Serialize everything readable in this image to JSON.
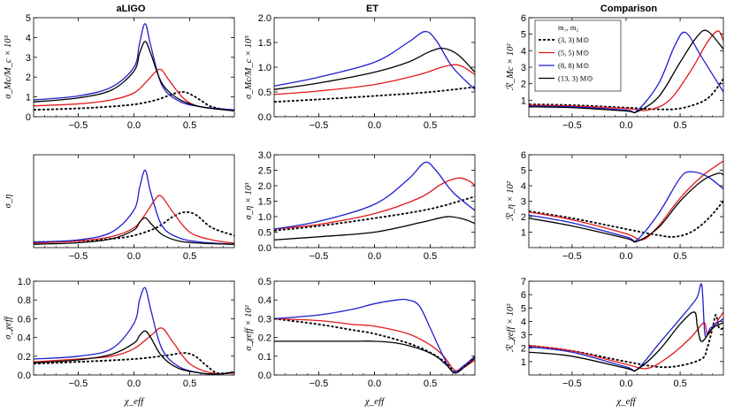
{
  "columns": [
    "aLIGO",
    "ET",
    "Comparison"
  ],
  "x_label": "χ_eff",
  "colors": {
    "m33": "#000000",
    "m55": "#e31a1c",
    "m88": "#1f1fd1",
    "m133": "#000000"
  },
  "legend": {
    "title": "m₁, m₂",
    "entries": [
      "(3, 3) M⊙",
      "(5, 5) M⊙",
      "(8, 8) M⊙",
      "(13, 3) M⊙"
    ]
  },
  "chart_data": [
    {
      "id": "p00",
      "type": "line",
      "ylabel": "σ_Mc/M_c × 10³",
      "xlim": [
        -0.9,
        0.9
      ],
      "ylim": [
        0,
        5
      ],
      "xticks": [
        -0.5,
        0.0,
        0.5
      ],
      "yticks": [
        0,
        1,
        2,
        3,
        4,
        5
      ],
      "series": [
        {
          "key": "m33",
          "x": [
            -0.9,
            -0.6,
            -0.3,
            0.0,
            0.2,
            0.35,
            0.45,
            0.55,
            0.7,
            0.9
          ],
          "y": [
            0.35,
            0.4,
            0.48,
            0.62,
            0.85,
            1.15,
            1.25,
            1.0,
            0.5,
            0.3
          ]
        },
        {
          "key": "m55",
          "x": [
            -0.9,
            -0.5,
            -0.2,
            0.0,
            0.1,
            0.2,
            0.25,
            0.32,
            0.45,
            0.6,
            0.9
          ],
          "y": [
            0.55,
            0.65,
            0.85,
            1.2,
            1.7,
            2.3,
            2.35,
            1.8,
            0.9,
            0.5,
            0.3
          ]
        },
        {
          "key": "m88",
          "x": [
            -0.9,
            -0.5,
            -0.2,
            0.0,
            0.05,
            0.1,
            0.15,
            0.25,
            0.4,
            0.6,
            0.9
          ],
          "y": [
            0.85,
            1.05,
            1.5,
            2.5,
            3.7,
            4.7,
            3.6,
            1.6,
            0.8,
            0.5,
            0.35
          ]
        },
        {
          "key": "m133",
          "x": [
            -0.9,
            -0.5,
            -0.2,
            0.0,
            0.05,
            0.1,
            0.15,
            0.25,
            0.4,
            0.6,
            0.9
          ],
          "y": [
            0.75,
            0.95,
            1.35,
            2.3,
            3.2,
            3.8,
            3.2,
            1.7,
            0.9,
            0.5,
            0.3
          ]
        }
      ]
    },
    {
      "id": "p01",
      "type": "line",
      "ylabel": "σ_Mc/M_c × 10⁵",
      "xlim": [
        -0.9,
        0.9
      ],
      "ylim": [
        0,
        2
      ],
      "xticks": [
        -0.5,
        0.0,
        0.5
      ],
      "yticks": [
        0,
        0.5,
        1.0,
        1.5,
        2.0
      ],
      "series": [
        {
          "key": "m33",
          "x": [
            -0.9,
            -0.5,
            0.0,
            0.5,
            0.9
          ],
          "y": [
            0.3,
            0.35,
            0.42,
            0.5,
            0.6
          ]
        },
        {
          "key": "m55",
          "x": [
            -0.9,
            -0.5,
            0.0,
            0.4,
            0.6,
            0.72,
            0.8,
            0.9
          ],
          "y": [
            0.45,
            0.52,
            0.65,
            0.85,
            1.0,
            1.05,
            1.0,
            0.85
          ]
        },
        {
          "key": "m88",
          "x": [
            -0.9,
            -0.5,
            0.0,
            0.3,
            0.45,
            0.55,
            0.7,
            0.9
          ],
          "y": [
            0.62,
            0.8,
            1.1,
            1.5,
            1.72,
            1.55,
            1.0,
            0.55
          ]
        },
        {
          "key": "m133",
          "x": [
            -0.9,
            -0.5,
            0.0,
            0.3,
            0.5,
            0.62,
            0.75,
            0.9
          ],
          "y": [
            0.55,
            0.68,
            0.9,
            1.1,
            1.32,
            1.38,
            1.25,
            0.9
          ]
        }
      ]
    },
    {
      "id": "p02",
      "type": "line",
      "ylabel": "ℛ_Mc × 10²",
      "xlim": [
        -0.9,
        0.9
      ],
      "ylim": [
        0,
        6
      ],
      "xticks": [
        -0.5,
        0.0,
        0.5
      ],
      "yticks": [
        1,
        2,
        3,
        4,
        5,
        6
      ],
      "legend": true,
      "series": [
        {
          "key": "m33",
          "x": [
            -0.9,
            -0.5,
            0.0,
            0.3,
            0.5,
            0.7,
            0.8,
            0.9
          ],
          "y": [
            0.75,
            0.7,
            0.55,
            0.45,
            0.5,
            0.9,
            1.4,
            2.3
          ]
        },
        {
          "key": "m55",
          "x": [
            -0.9,
            -0.5,
            0.0,
            0.2,
            0.4,
            0.6,
            0.75,
            0.85,
            0.9
          ],
          "y": [
            0.7,
            0.65,
            0.5,
            0.4,
            1.0,
            2.8,
            4.5,
            5.2,
            4.6
          ]
        },
        {
          "key": "m88",
          "x": [
            -0.9,
            -0.5,
            0.0,
            0.1,
            0.3,
            0.45,
            0.55,
            0.7,
            0.9
          ],
          "y": [
            0.65,
            0.6,
            0.4,
            0.35,
            2.0,
            4.3,
            5.1,
            3.6,
            1.5
          ]
        },
        {
          "key": "m133",
          "x": [
            -0.9,
            -0.5,
            0.0,
            0.1,
            0.3,
            0.5,
            0.65,
            0.75,
            0.9
          ],
          "y": [
            0.6,
            0.55,
            0.35,
            0.3,
            1.2,
            3.3,
            4.8,
            5.2,
            4.1
          ]
        }
      ]
    },
    {
      "id": "p10",
      "type": "line",
      "ylabel": "σ_η",
      "xlim": [
        -0.9,
        0.9
      ],
      "ylim": [
        0,
        0.42
      ],
      "xticks": [
        -0.5,
        0.0,
        0.5
      ],
      "yticks": [],
      "series": [
        {
          "key": "m33",
          "x": [
            -0.9,
            -0.5,
            -0.2,
            0.0,
            0.2,
            0.35,
            0.45,
            0.55,
            0.7,
            0.9
          ],
          "y": [
            0.025,
            0.03,
            0.04,
            0.055,
            0.09,
            0.14,
            0.16,
            0.15,
            0.09,
            0.055
          ]
        },
        {
          "key": "m55",
          "x": [
            -0.9,
            -0.5,
            -0.2,
            0.0,
            0.1,
            0.2,
            0.25,
            0.35,
            0.5,
            0.7,
            0.9
          ],
          "y": [
            0.02,
            0.03,
            0.05,
            0.09,
            0.15,
            0.225,
            0.23,
            0.16,
            0.07,
            0.035,
            0.02
          ]
        },
        {
          "key": "m88",
          "x": [
            -0.9,
            -0.5,
            -0.2,
            0.0,
            0.05,
            0.1,
            0.15,
            0.25,
            0.4,
            0.6,
            0.9
          ],
          "y": [
            0.025,
            0.035,
            0.07,
            0.17,
            0.27,
            0.35,
            0.25,
            0.1,
            0.045,
            0.025,
            0.015
          ]
        },
        {
          "key": "m133",
          "x": [
            -0.9,
            -0.5,
            -0.2,
            0.0,
            0.05,
            0.1,
            0.15,
            0.25,
            0.4,
            0.6,
            0.9
          ],
          "y": [
            0.015,
            0.022,
            0.04,
            0.08,
            0.115,
            0.135,
            0.11,
            0.06,
            0.03,
            0.02,
            0.015
          ]
        }
      ]
    },
    {
      "id": "p11",
      "type": "line",
      "ylabel": "σ_η × 10³",
      "xlim": [
        -0.9,
        0.9
      ],
      "ylim": [
        0,
        3
      ],
      "xticks": [
        -0.5,
        0.0,
        0.5
      ],
      "yticks": [
        0,
        0.5,
        1.0,
        1.5,
        2.0,
        2.5,
        3.0
      ],
      "series": [
        {
          "key": "m33",
          "x": [
            -0.9,
            -0.5,
            0.0,
            0.5,
            0.9
          ],
          "y": [
            0.55,
            0.7,
            0.95,
            1.25,
            1.65
          ]
        },
        {
          "key": "m55",
          "x": [
            -0.9,
            -0.5,
            0.0,
            0.4,
            0.6,
            0.75,
            0.85,
            0.9
          ],
          "y": [
            0.6,
            0.75,
            1.1,
            1.6,
            2.05,
            2.25,
            2.15,
            2.0
          ]
        },
        {
          "key": "m88",
          "x": [
            -0.9,
            -0.5,
            0.0,
            0.3,
            0.45,
            0.55,
            0.7,
            0.9
          ],
          "y": [
            0.6,
            0.85,
            1.4,
            2.2,
            2.75,
            2.5,
            1.8,
            1.2
          ]
        },
        {
          "key": "m133",
          "x": [
            -0.9,
            -0.5,
            0.0,
            0.4,
            0.6,
            0.68,
            0.8,
            0.9
          ],
          "y": [
            0.25,
            0.35,
            0.5,
            0.8,
            0.97,
            1.0,
            0.92,
            0.78
          ]
        }
      ]
    },
    {
      "id": "p12",
      "type": "line",
      "ylabel": "ℛ_η × 10²",
      "xlim": [
        -0.9,
        0.9
      ],
      "ylim": [
        0,
        6
      ],
      "xticks": [
        -0.5,
        0.0,
        0.5
      ],
      "yticks": [
        1,
        2,
        3,
        4,
        5,
        6
      ],
      "series": [
        {
          "key": "m33",
          "x": [
            -0.9,
            -0.5,
            0.0,
            0.3,
            0.45,
            0.6,
            0.75,
            0.9
          ],
          "y": [
            2.35,
            1.9,
            1.2,
            0.8,
            0.7,
            1.0,
            1.8,
            3.0
          ]
        },
        {
          "key": "m55",
          "x": [
            -0.9,
            -0.5,
            0.0,
            0.15,
            0.3,
            0.5,
            0.7,
            0.9
          ],
          "y": [
            2.3,
            1.8,
            0.9,
            0.5,
            1.4,
            3.2,
            4.6,
            5.6
          ]
        },
        {
          "key": "m88",
          "x": [
            -0.9,
            -0.5,
            0.0,
            0.1,
            0.3,
            0.5,
            0.6,
            0.75,
            0.9
          ],
          "y": [
            2.1,
            1.6,
            0.7,
            0.5,
            2.2,
            4.5,
            4.9,
            4.6,
            3.8
          ]
        },
        {
          "key": "m133",
          "x": [
            -0.9,
            -0.5,
            0.0,
            0.1,
            0.3,
            0.5,
            0.7,
            0.85,
            0.9
          ],
          "y": [
            1.9,
            1.4,
            0.6,
            0.4,
            1.3,
            3.0,
            4.3,
            4.8,
            4.7
          ]
        }
      ]
    },
    {
      "id": "p20",
      "type": "line",
      "ylabel": "σ_χeff",
      "xlim": [
        -0.9,
        0.9
      ],
      "ylim": [
        0,
        1.0
      ],
      "xticks": [
        -0.5,
        0.0,
        0.5
      ],
      "yticks": [
        0,
        0.2,
        0.4,
        0.6,
        0.8,
        1.0
      ],
      "series": [
        {
          "key": "m33",
          "x": [
            -0.9,
            -0.5,
            0.0,
            0.3,
            0.45,
            0.55,
            0.65,
            0.75,
            0.9
          ],
          "y": [
            0.12,
            0.14,
            0.17,
            0.21,
            0.235,
            0.2,
            0.1,
            0.02,
            0.03
          ]
        },
        {
          "key": "m55",
          "x": [
            -0.9,
            -0.5,
            -0.2,
            0.0,
            0.15,
            0.25,
            0.35,
            0.5,
            0.7,
            0.9
          ],
          "y": [
            0.14,
            0.17,
            0.2,
            0.28,
            0.42,
            0.5,
            0.35,
            0.12,
            0.02,
            0.02
          ]
        },
        {
          "key": "m88",
          "x": [
            -0.9,
            -0.5,
            -0.2,
            0.0,
            0.05,
            0.1,
            0.15,
            0.25,
            0.4,
            0.6,
            0.75,
            0.9
          ],
          "y": [
            0.17,
            0.2,
            0.28,
            0.55,
            0.8,
            0.93,
            0.7,
            0.28,
            0.09,
            0.02,
            0.01,
            0.03
          ]
        },
        {
          "key": "m133",
          "x": [
            -0.9,
            -0.5,
            -0.2,
            0.0,
            0.05,
            0.1,
            0.15,
            0.25,
            0.4,
            0.6,
            0.75,
            0.9
          ],
          "y": [
            0.13,
            0.16,
            0.22,
            0.34,
            0.42,
            0.47,
            0.4,
            0.2,
            0.07,
            0.02,
            0.01,
            0.03
          ]
        }
      ]
    },
    {
      "id": "p21",
      "type": "line",
      "ylabel": "σ_χeff × 10²",
      "xlim": [
        -0.9,
        0.9
      ],
      "ylim": [
        0,
        0.5
      ],
      "xticks": [
        -0.5,
        0.0,
        0.5
      ],
      "yticks": [
        0,
        0.1,
        0.2,
        0.3,
        0.4,
        0.5
      ],
      "series": [
        {
          "key": "m33",
          "x": [
            -0.9,
            -0.5,
            -0.2,
            0.0,
            0.3,
            0.5,
            0.65,
            0.72,
            0.8,
            0.9
          ],
          "y": [
            0.3,
            0.27,
            0.24,
            0.22,
            0.17,
            0.12,
            0.06,
            0.015,
            0.04,
            0.1
          ]
        },
        {
          "key": "m55",
          "x": [
            -0.9,
            -0.5,
            -0.2,
            0.0,
            0.3,
            0.5,
            0.62,
            0.72,
            0.8,
            0.9
          ],
          "y": [
            0.3,
            0.29,
            0.27,
            0.26,
            0.22,
            0.16,
            0.1,
            0.025,
            0.04,
            0.08
          ]
        },
        {
          "key": "m88",
          "x": [
            -0.9,
            -0.5,
            -0.2,
            0.0,
            0.2,
            0.3,
            0.4,
            0.5,
            0.6,
            0.7,
            0.8,
            0.9
          ],
          "y": [
            0.3,
            0.32,
            0.35,
            0.38,
            0.4,
            0.4,
            0.37,
            0.25,
            0.12,
            0.02,
            0.05,
            0.1
          ]
        },
        {
          "key": "m133",
          "x": [
            -0.9,
            -0.5,
            -0.2,
            0.0,
            0.2,
            0.4,
            0.55,
            0.65,
            0.72,
            0.8,
            0.9
          ],
          "y": [
            0.18,
            0.18,
            0.18,
            0.18,
            0.17,
            0.14,
            0.1,
            0.05,
            0.01,
            0.04,
            0.09
          ]
        }
      ]
    },
    {
      "id": "p22",
      "type": "line",
      "ylabel": "ℛ_χeff × 10²",
      "xlim": [
        -0.9,
        0.9
      ],
      "ylim": [
        0,
        7
      ],
      "xticks": [
        -0.5,
        0.0,
        0.5
      ],
      "yticks": [
        1,
        2,
        3,
        4,
        5,
        6,
        7
      ],
      "series": [
        {
          "key": "m33",
          "x": [
            -0.9,
            -0.5,
            0.0,
            0.3,
            0.5,
            0.7,
            0.75,
            0.8,
            0.83,
            0.86,
            0.9
          ],
          "y": [
            2.2,
            1.8,
            1.0,
            0.6,
            0.7,
            1.2,
            2.0,
            3.5,
            4.5,
            3.5,
            3.5
          ]
        },
        {
          "key": "m55",
          "x": [
            -0.9,
            -0.5,
            0.0,
            0.2,
            0.4,
            0.6,
            0.72,
            0.75,
            0.8,
            0.9
          ],
          "y": [
            2.2,
            1.8,
            0.8,
            0.5,
            1.4,
            2.8,
            3.9,
            3.0,
            3.5,
            4.7
          ]
        },
        {
          "key": "m88",
          "x": [
            -0.9,
            -0.5,
            0.0,
            0.1,
            0.3,
            0.5,
            0.65,
            0.7,
            0.73,
            0.78,
            0.9
          ],
          "y": [
            2.1,
            1.7,
            0.6,
            0.4,
            2.3,
            4.2,
            5.7,
            6.7,
            3.0,
            3.5,
            4.2
          ]
        },
        {
          "key": "m133",
          "x": [
            -0.9,
            -0.5,
            0.0,
            0.1,
            0.3,
            0.5,
            0.63,
            0.66,
            0.7,
            0.8,
            0.9
          ],
          "y": [
            1.7,
            1.4,
            0.5,
            0.4,
            1.8,
            3.8,
            4.7,
            3.6,
            2.5,
            3.5,
            3.9
          ]
        }
      ]
    }
  ]
}
